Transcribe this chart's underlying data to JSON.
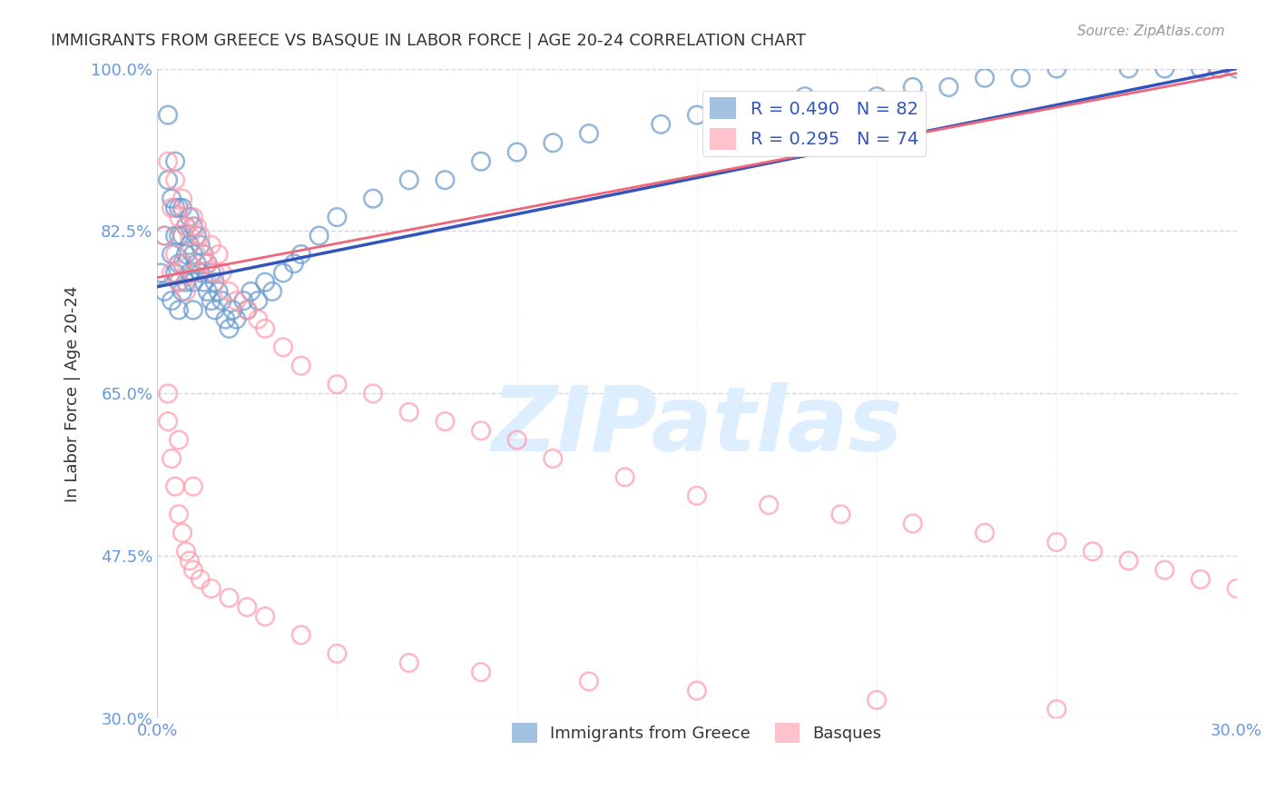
{
  "title": "IMMIGRANTS FROM GREECE VS BASQUE IN LABOR FORCE | AGE 20-24 CORRELATION CHART",
  "source_text": "Source: ZipAtlas.com",
  "xlabel": "",
  "ylabel": "In Labor Force | Age 20-24",
  "xlim": [
    0.0,
    0.3
  ],
  "ylim": [
    0.3,
    1.0
  ],
  "xticks": [
    0.0,
    0.05,
    0.1,
    0.15,
    0.2,
    0.25,
    0.3
  ],
  "xticklabels": [
    "0.0%",
    "",
    "",
    "",
    "",
    "",
    "30.0%"
  ],
  "yticks": [
    0.3,
    0.475,
    0.65,
    0.825,
    1.0
  ],
  "yticklabels": [
    "30.0%",
    "47.5%",
    "65.0%",
    "82.5%",
    "100.0%"
  ],
  "legend_blue_label": "R = 0.490   N = 82",
  "legend_pink_label": "R = 0.295   N = 74",
  "legend1_label": "Immigrants from Greece",
  "legend2_label": "Basques",
  "blue_color": "#6699CC",
  "pink_color": "#FF99AA",
  "trend_blue_color": "#3355BB",
  "trend_pink_color": "#EE6677",
  "watermark_text": "ZIPatlas",
  "watermark_color": "#DDEEFF",
  "title_color": "#333333",
  "axis_label_color": "#333333",
  "tick_color": "#6699DD",
  "grid_color": "#CCCCDD",
  "background_color": "#FFFFFF",
  "blue_R": 0.49,
  "blue_N": 82,
  "pink_R": 0.295,
  "pink_N": 74,
  "blue_scatter_x": [
    0.002,
    0.003,
    0.003,
    0.004,
    0.004,
    0.004,
    0.005,
    0.005,
    0.005,
    0.005,
    0.006,
    0.006,
    0.006,
    0.006,
    0.006,
    0.007,
    0.007,
    0.007,
    0.007,
    0.008,
    0.008,
    0.008,
    0.009,
    0.009,
    0.009,
    0.01,
    0.01,
    0.01,
    0.01,
    0.011,
    0.011,
    0.012,
    0.012,
    0.013,
    0.013,
    0.014,
    0.014,
    0.015,
    0.015,
    0.016,
    0.016,
    0.017,
    0.018,
    0.019,
    0.02,
    0.021,
    0.022,
    0.024,
    0.025,
    0.026,
    0.028,
    0.03,
    0.032,
    0.035,
    0.038,
    0.04,
    0.045,
    0.05,
    0.06,
    0.07,
    0.08,
    0.09,
    0.1,
    0.11,
    0.12,
    0.14,
    0.15,
    0.16,
    0.18,
    0.2,
    0.21,
    0.22,
    0.23,
    0.24,
    0.25,
    0.27,
    0.28,
    0.29,
    0.295,
    0.3,
    0.001,
    0.002
  ],
  "blue_scatter_y": [
    0.82,
    0.95,
    0.88,
    0.86,
    0.8,
    0.75,
    0.9,
    0.85,
    0.82,
    0.78,
    0.85,
    0.82,
    0.79,
    0.77,
    0.74,
    0.85,
    0.82,
    0.79,
    0.76,
    0.83,
    0.8,
    0.77,
    0.84,
    0.81,
    0.78,
    0.83,
    0.8,
    0.77,
    0.74,
    0.82,
    0.79,
    0.81,
    0.78,
    0.8,
    0.77,
    0.79,
    0.76,
    0.78,
    0.75,
    0.77,
    0.74,
    0.76,
    0.75,
    0.73,
    0.72,
    0.74,
    0.73,
    0.75,
    0.74,
    0.76,
    0.75,
    0.77,
    0.76,
    0.78,
    0.79,
    0.8,
    0.82,
    0.84,
    0.86,
    0.88,
    0.88,
    0.9,
    0.91,
    0.92,
    0.93,
    0.94,
    0.95,
    0.96,
    0.97,
    0.97,
    0.98,
    0.98,
    0.99,
    0.99,
    1.0,
    1.0,
    1.0,
    1.0,
    1.0,
    1.0,
    0.78,
    0.76
  ],
  "pink_scatter_x": [
    0.002,
    0.003,
    0.004,
    0.004,
    0.005,
    0.005,
    0.006,
    0.006,
    0.007,
    0.007,
    0.008,
    0.008,
    0.009,
    0.01,
    0.01,
    0.011,
    0.012,
    0.013,
    0.014,
    0.015,
    0.016,
    0.017,
    0.018,
    0.02,
    0.022,
    0.025,
    0.028,
    0.03,
    0.035,
    0.04,
    0.05,
    0.06,
    0.07,
    0.08,
    0.09,
    0.1,
    0.11,
    0.13,
    0.15,
    0.17,
    0.19,
    0.21,
    0.23,
    0.25,
    0.26,
    0.27,
    0.28,
    0.29,
    0.3,
    0.295,
    0.003,
    0.004,
    0.005,
    0.006,
    0.007,
    0.008,
    0.009,
    0.01,
    0.012,
    0.015,
    0.02,
    0.025,
    0.03,
    0.04,
    0.05,
    0.07,
    0.09,
    0.12,
    0.15,
    0.2,
    0.25,
    0.003,
    0.006,
    0.01
  ],
  "pink_scatter_y": [
    0.82,
    0.9,
    0.85,
    0.78,
    0.88,
    0.8,
    0.84,
    0.77,
    0.86,
    0.79,
    0.83,
    0.76,
    0.82,
    0.84,
    0.78,
    0.83,
    0.82,
    0.8,
    0.79,
    0.81,
    0.78,
    0.8,
    0.78,
    0.76,
    0.75,
    0.74,
    0.73,
    0.72,
    0.7,
    0.68,
    0.66,
    0.65,
    0.63,
    0.62,
    0.61,
    0.6,
    0.58,
    0.56,
    0.54,
    0.53,
    0.52,
    0.51,
    0.5,
    0.49,
    0.48,
    0.47,
    0.46,
    0.45,
    0.44,
    1.0,
    0.62,
    0.58,
    0.55,
    0.52,
    0.5,
    0.48,
    0.47,
    0.46,
    0.45,
    0.44,
    0.43,
    0.42,
    0.41,
    0.39,
    0.37,
    0.36,
    0.35,
    0.34,
    0.33,
    0.32,
    0.31,
    0.65,
    0.6,
    0.55
  ],
  "blue_trend_x": [
    0.0,
    0.3
  ],
  "blue_trend_y": [
    0.765,
    1.0
  ],
  "pink_trend_x": [
    0.0,
    0.3
  ],
  "pink_trend_y": [
    0.775,
    0.995
  ]
}
